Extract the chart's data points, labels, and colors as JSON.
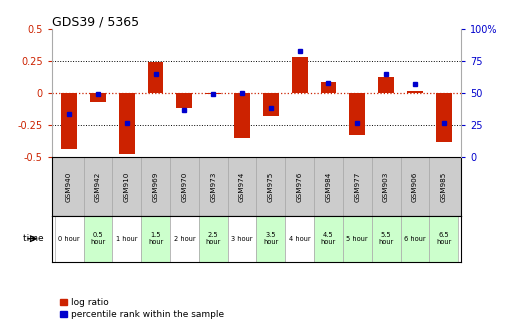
{
  "title": "GDS39 / 5365",
  "samples": [
    "GSM940",
    "GSM942",
    "GSM910",
    "GSM969",
    "GSM970",
    "GSM973",
    "GSM974",
    "GSM975",
    "GSM976",
    "GSM984",
    "GSM977",
    "GSM903",
    "GSM906",
    "GSM985"
  ],
  "time_labels": [
    "0 hour",
    "0.5\nhour",
    "1 hour",
    "1.5\nhour",
    "2 hour",
    "2.5\nhour",
    "3 hour",
    "3.5\nhour",
    "4 hour",
    "4.5\nhour",
    "5 hour",
    "5.5\nhour",
    "6 hour",
    "6.5\nhour"
  ],
  "log_ratios": [
    -0.44,
    -0.07,
    -0.48,
    0.245,
    -0.12,
    -0.01,
    -0.35,
    -0.18,
    0.28,
    0.09,
    -0.33,
    0.13,
    0.02,
    -0.38
  ],
  "percentile_ranks": [
    34,
    49,
    27,
    65,
    37,
    49,
    50,
    38,
    83,
    58,
    27,
    65,
    57,
    27
  ],
  "bar_color": "#cc2200",
  "dot_color": "#0000cc",
  "bg_color": "#ffffff",
  "plot_bg_color": "#ffffff",
  "ylim_left": [
    -0.5,
    0.5
  ],
  "ylim_right": [
    0,
    100
  ],
  "yticks_left": [
    -0.5,
    -0.25,
    0,
    0.25,
    0.5
  ],
  "yticks_right": [
    0,
    25,
    50,
    75,
    100
  ],
  "time_bg_colors": [
    "#ffffff",
    "#ccffcc",
    "#ffffff",
    "#ccffcc",
    "#ffffff",
    "#ccffcc",
    "#ffffff",
    "#ccffcc",
    "#ffffff",
    "#ccffcc",
    "#ccffcc",
    "#ccffcc",
    "#ccffcc",
    "#ccffcc"
  ],
  "sample_bg_color": "#cccccc",
  "legend_log_ratio": "log ratio",
  "legend_percentile": "percentile rank within the sample",
  "time_label_text": "time"
}
